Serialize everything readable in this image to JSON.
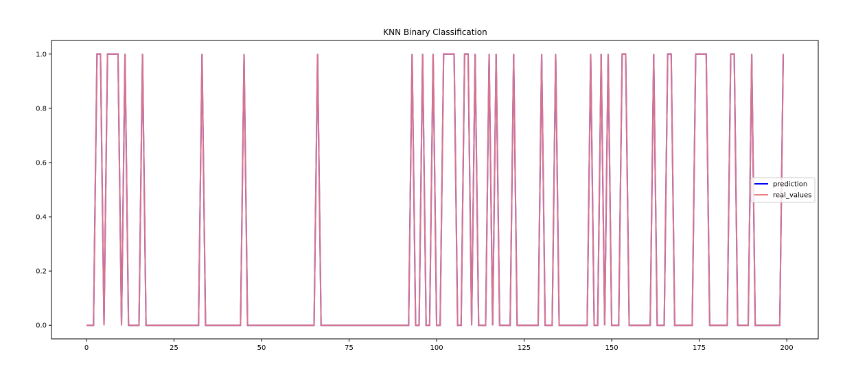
{
  "chart_data": {
    "type": "line",
    "title": "KNN Binary Classification",
    "xlabel": "",
    "ylabel": "",
    "xlim": [
      -10,
      209
    ],
    "ylim": [
      -0.05,
      1.05
    ],
    "x_ticks": [
      0,
      25,
      50,
      75,
      100,
      125,
      150,
      175,
      200
    ],
    "x_tick_labels": [
      "0",
      "25",
      "50",
      "75",
      "100",
      "125",
      "150",
      "175",
      "200"
    ],
    "y_ticks": [
      0.0,
      0.2,
      0.4,
      0.6,
      0.8,
      1.0
    ],
    "y_tick_labels": [
      "0.0",
      "0.2",
      "0.4",
      "0.6",
      "0.8",
      "1.0"
    ],
    "grid": false,
    "legend_position": "center-right",
    "x": [
      0,
      1,
      2,
      3,
      4,
      5,
      6,
      7,
      8,
      9,
      10,
      11,
      12,
      13,
      14,
      15,
      16,
      17,
      18,
      19,
      20,
      21,
      22,
      23,
      24,
      25,
      26,
      27,
      28,
      29,
      30,
      31,
      32,
      33,
      34,
      35,
      36,
      37,
      38,
      39,
      40,
      41,
      42,
      43,
      44,
      45,
      46,
      47,
      48,
      49,
      50,
      51,
      52,
      53,
      54,
      55,
      56,
      57,
      58,
      59,
      60,
      61,
      62,
      63,
      64,
      65,
      66,
      67,
      68,
      69,
      70,
      71,
      72,
      73,
      74,
      75,
      76,
      77,
      78,
      79,
      80,
      81,
      82,
      83,
      84,
      85,
      86,
      87,
      88,
      89,
      90,
      91,
      92,
      93,
      94,
      95,
      96,
      97,
      98,
      99,
      100,
      101,
      102,
      103,
      104,
      105,
      106,
      107,
      108,
      109,
      110,
      111,
      112,
      113,
      114,
      115,
      116,
      117,
      118,
      119,
      120,
      121,
      122,
      123,
      124,
      125,
      126,
      127,
      128,
      129,
      130,
      131,
      132,
      133,
      134,
      135,
      136,
      137,
      138,
      139,
      140,
      141,
      142,
      143,
      144,
      145,
      146,
      147,
      148,
      149,
      150,
      151,
      152,
      153,
      154,
      155,
      156,
      157,
      158,
      159,
      160,
      161,
      162,
      163,
      164,
      165,
      166,
      167,
      168,
      169,
      170,
      171,
      172,
      173,
      174,
      175,
      176,
      177,
      178,
      179,
      180,
      181,
      182,
      183,
      184,
      185,
      186,
      187,
      188,
      189,
      190,
      191,
      192,
      193,
      194,
      195,
      196,
      197,
      198,
      199
    ],
    "series": [
      {
        "name": "prediction",
        "color": "#0000ff",
        "values": [
          0,
          0,
          0,
          1,
          1,
          0,
          1,
          1,
          1,
          1,
          0,
          1,
          0,
          0,
          0,
          0,
          1,
          0,
          0,
          0,
          0,
          0,
          0,
          0,
          0,
          0,
          0,
          0,
          0,
          0,
          0,
          0,
          0,
          1,
          0,
          0,
          0,
          0,
          0,
          0,
          0,
          0,
          0,
          0,
          0,
          1,
          0,
          0,
          0,
          0,
          0,
          0,
          0,
          0,
          0,
          0,
          0,
          0,
          0,
          0,
          0,
          0,
          0,
          0,
          0,
          0,
          1,
          0,
          0,
          0,
          0,
          0,
          0,
          0,
          0,
          0,
          0,
          0,
          0,
          0,
          0,
          0,
          0,
          0,
          0,
          0,
          0,
          0,
          0,
          0,
          0,
          0,
          0,
          1,
          0,
          0,
          1,
          0,
          0,
          1,
          0,
          0,
          1,
          1,
          1,
          1,
          0,
          0,
          1,
          1,
          0,
          1,
          0,
          0,
          0,
          1,
          0,
          1,
          0,
          0,
          0,
          0,
          1,
          0,
          0,
          0,
          0,
          0,
          0,
          0,
          1,
          0,
          0,
          0,
          1,
          0,
          0,
          0,
          0,
          0,
          0,
          0,
          0,
          0,
          1,
          0,
          0,
          1,
          0,
          1,
          0,
          0,
          0,
          1,
          1,
          0,
          0,
          0,
          0,
          0,
          0,
          0,
          1,
          0,
          0,
          0,
          1,
          1,
          0,
          0,
          0,
          0,
          0,
          0,
          1,
          1,
          1,
          1,
          0,
          0,
          0,
          0,
          0,
          0,
          1,
          1,
          0,
          0,
          0,
          0,
          1,
          0,
          0,
          0,
          0,
          0,
          0,
          0,
          0,
          1
        ]
      },
      {
        "name": "real_values",
        "color": "#f08080",
        "values": [
          0,
          0,
          0,
          1,
          1,
          0,
          1,
          1,
          1,
          1,
          0,
          1,
          0,
          0,
          0,
          0,
          1,
          0,
          0,
          0,
          0,
          0,
          0,
          0,
          0,
          0,
          0,
          0,
          0,
          0,
          0,
          0,
          0,
          1,
          0,
          0,
          0,
          0,
          0,
          0,
          0,
          0,
          0,
          0,
          0,
          1,
          0,
          0,
          0,
          0,
          0,
          0,
          0,
          0,
          0,
          0,
          0,
          0,
          0,
          0,
          0,
          0,
          0,
          0,
          0,
          0,
          1,
          0,
          0,
          0,
          0,
          0,
          0,
          0,
          0,
          0,
          0,
          0,
          0,
          0,
          0,
          0,
          0,
          0,
          0,
          0,
          0,
          0,
          0,
          0,
          0,
          0,
          0,
          1,
          0,
          0,
          1,
          0,
          0,
          1,
          0,
          0,
          1,
          1,
          1,
          1,
          0,
          0,
          1,
          1,
          0,
          1,
          0,
          0,
          0,
          1,
          0,
          1,
          0,
          0,
          0,
          0,
          1,
          0,
          0,
          0,
          0,
          0,
          0,
          0,
          1,
          0,
          0,
          0,
          1,
          0,
          0,
          0,
          0,
          0,
          0,
          0,
          0,
          0,
          1,
          0,
          0,
          1,
          0,
          1,
          0,
          0,
          0,
          1,
          1,
          0,
          0,
          0,
          0,
          0,
          0,
          0,
          1,
          0,
          0,
          0,
          1,
          1,
          0,
          0,
          0,
          0,
          0,
          0,
          1,
          1,
          1,
          1,
          0,
          0,
          0,
          0,
          0,
          0,
          1,
          1,
          0,
          0,
          0,
          0,
          1,
          0,
          0,
          0,
          0,
          0,
          0,
          0,
          0,
          1
        ]
      }
    ]
  }
}
